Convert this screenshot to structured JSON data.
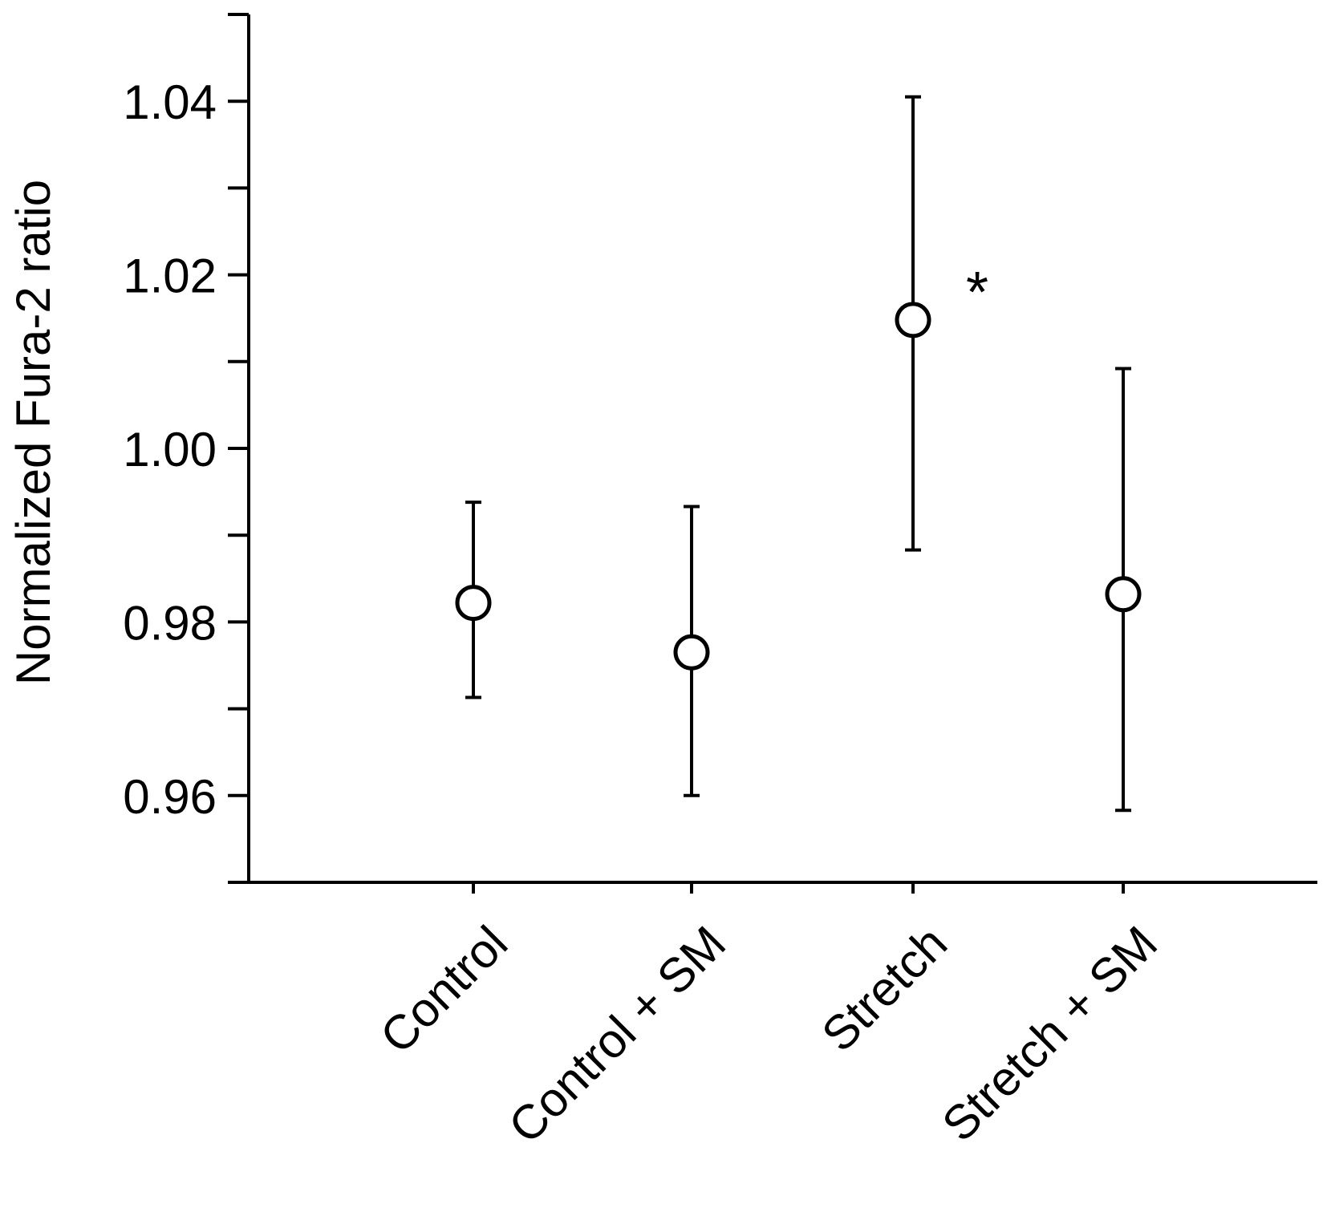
{
  "chart_data": {
    "type": "scatter",
    "ylabel": "Normalized Fura-2 ratio",
    "xlabel": "",
    "categories": [
      "Control",
      "Control + SM",
      "Stretch",
      "Stretch + SM"
    ],
    "series": [
      {
        "values": [
          0.9822,
          0.9765,
          1.0148,
          0.9832
        ],
        "error_low": [
          0.9713,
          0.96,
          0.9883,
          0.9583
        ],
        "error_high": [
          0.9938,
          0.9933,
          1.0405,
          1.0092
        ]
      }
    ],
    "ylim": [
      0.95,
      1.05
    ],
    "yticks": [
      0.96,
      0.98,
      1.0,
      1.02,
      1.04
    ],
    "ytick_labels": [
      "0.96",
      "0.98",
      "1.00",
      "1.02",
      "1.04"
    ],
    "annotations": [
      {
        "text": "*",
        "category": "Stretch"
      }
    ],
    "marker": "open-circle",
    "grid": false,
    "legend": "none",
    "colors": {
      "axis": "#000000",
      "marker_stroke": "#000000",
      "marker_fill": "#ffffff"
    }
  }
}
